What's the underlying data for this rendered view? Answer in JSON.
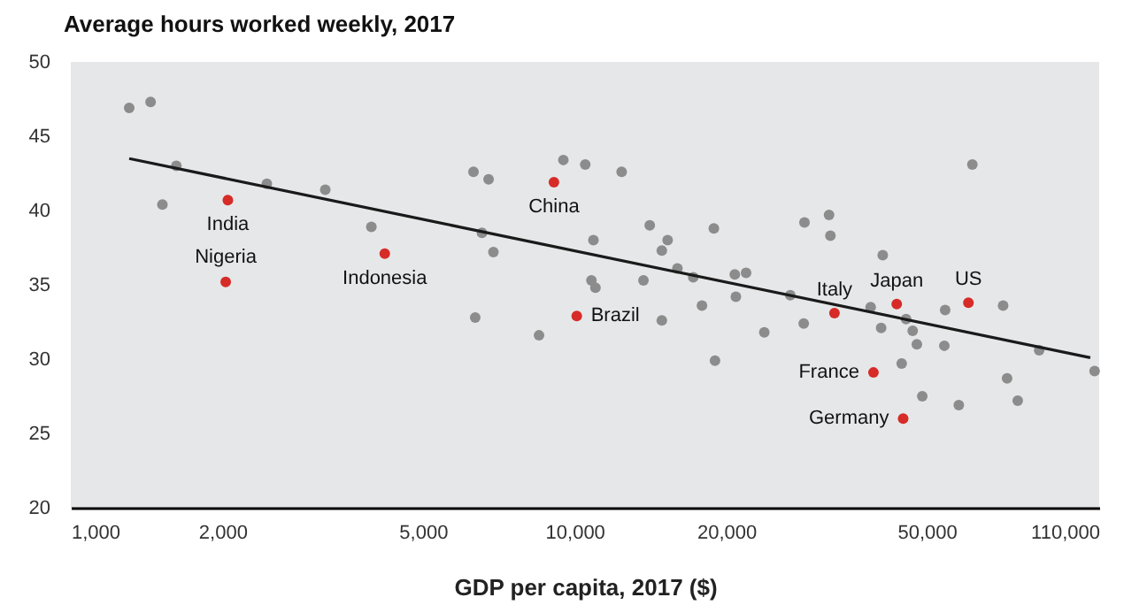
{
  "chart_data": {
    "type": "scatter",
    "title": "Average hours worked weekly, 2017",
    "xlabel": "GDP per capita, 2017 ($)",
    "log": "x",
    "xlim": [
      1000,
      110000
    ],
    "ylim": [
      20,
      50
    ],
    "xticks": [
      {
        "value": 1000,
        "label": "1,000"
      },
      {
        "value": 2000,
        "label": "2,000"
      },
      {
        "value": 5000,
        "label": "5,000"
      },
      {
        "value": 10000,
        "label": "10,000"
      },
      {
        "value": 20000,
        "label": "20,000"
      },
      {
        "value": 50000,
        "label": "50,000"
      },
      {
        "value": 110000,
        "label": "110,000"
      }
    ],
    "yticks": [
      20,
      25,
      30,
      35,
      40,
      45,
      50
    ],
    "grid": false,
    "marker": "circle",
    "series": [
      {
        "color": "#8c8c8c",
        "x": [
          1306,
          1440,
          1620,
          1520,
          2450,
          3200,
          3950,
          6300,
          6750,
          6550,
          6900,
          6350,
          8500,
          9500,
          10500,
          12400,
          10900,
          10800,
          11000,
          14100,
          15300,
          14900,
          16000,
          13700,
          14900,
          17200,
          18900,
          17900,
          19000,
          20800,
          21900,
          20900,
          23800,
          26800,
          28600,
          28500,
          32000,
          32200,
          38700,
          40900,
          40600,
          45500,
          46900,
          47800,
          44600,
          49000,
          54400,
          54200,
          61600,
          57900,
          70900,
          72200,
          75800,
          83600,
          107700
        ],
        "values": [
          46.9,
          47.3,
          43.0,
          40.4,
          41.8,
          41.4,
          38.9,
          42.6,
          42.1,
          38.5,
          37.2,
          32.8,
          31.6,
          43.4,
          43.1,
          42.6,
          38.0,
          35.3,
          34.8,
          39.0,
          38.0,
          37.3,
          36.1,
          35.3,
          32.6,
          35.5,
          38.8,
          33.6,
          29.9,
          35.7,
          35.8,
          34.2,
          31.8,
          34.3,
          39.2,
          32.4,
          39.7,
          38.3,
          33.5,
          37.0,
          32.1,
          32.7,
          31.9,
          31.0,
          29.7,
          27.5,
          33.3,
          30.9,
          43.1,
          26.9,
          33.6,
          28.7,
          27.2,
          30.6,
          29.2
        ]
      },
      {
        "color": "#d62b27",
        "x": [
          2050,
          2030,
          4200,
          9100,
          10100,
          32800,
          43600,
          60500,
          39200,
          44900
        ],
        "values": [
          40.7,
          35.2,
          37.1,
          41.9,
          32.9,
          33.1,
          33.7,
          33.8,
          29.1,
          26.0
        ]
      },
      {
        "type": "line",
        "color": "#1a1a1a",
        "x": [
          1306,
          105600
        ],
        "values": [
          43.5,
          30.1
        ],
        "marker": "none",
        "line_style": "solid"
      }
    ],
    "annotations": [
      {
        "text": "India",
        "x": 2050,
        "y": 40.7
      },
      {
        "text": "Nigeria",
        "x": 2030,
        "y": 35.2
      },
      {
        "text": "Indonesia",
        "x": 4200,
        "y": 37.1
      },
      {
        "text": "China",
        "x": 9100,
        "y": 41.9
      },
      {
        "text": "Brazil",
        "x": 10100,
        "y": 32.9
      },
      {
        "text": "Italy",
        "x": 32800,
        "y": 33.1
      },
      {
        "text": "Japan",
        "x": 43600,
        "y": 33.7
      },
      {
        "text": "US",
        "x": 60500,
        "y": 33.8
      },
      {
        "text": "France",
        "x": 39200,
        "y": 29.1
      },
      {
        "text": "Germany",
        "x": 44900,
        "y": 26.0
      }
    ]
  }
}
